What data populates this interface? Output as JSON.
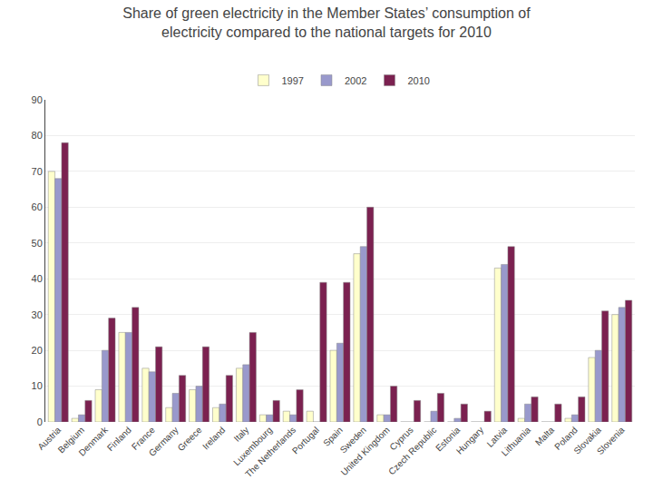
{
  "chart_data": {
    "type": "bar",
    "title": "Share of green electricity in the Member States’ consumption of\nelectricity compared to the national targets for 2010",
    "categories": [
      "Austria",
      "Belgium",
      "Denmark",
      "Finland",
      "France",
      "Germany",
      "Greece",
      "Ireland",
      "Italy",
      "Luxembourg",
      "The Netherlands",
      "Portugal",
      "Spain",
      "Sweden",
      "United Kingdom",
      "Cyprus",
      "Czech Republic",
      "Estonia",
      "Hungary",
      "Latvia",
      "Lithuania",
      "Malta",
      "Poland",
      "Slovakia",
      "Slovenia"
    ],
    "series": [
      {
        "name": "1997",
        "color": "#FFFFCC",
        "values": [
          70,
          1,
          9,
          25,
          15,
          4,
          9,
          4,
          15,
          2,
          3,
          3,
          20,
          47,
          2,
          0,
          0,
          0,
          0,
          43,
          1,
          0,
          1,
          18,
          30
        ]
      },
      {
        "name": "2002",
        "color": "#9999CC",
        "values": [
          68,
          2,
          20,
          25,
          14,
          8,
          10,
          5,
          16,
          2,
          2,
          0,
          22,
          49,
          2,
          0,
          3,
          1,
          0,
          44,
          5,
          0,
          2,
          20,
          32
        ]
      },
      {
        "name": "2010",
        "color": "#7B2150",
        "values": [
          78,
          6,
          29,
          32,
          21,
          13,
          21,
          13,
          25,
          6,
          9,
          39,
          39,
          60,
          10,
          6,
          8,
          5,
          3,
          49,
          7,
          5,
          7,
          31,
          34
        ]
      }
    ],
    "ylim": [
      0,
      90
    ],
    "yticks": [
      0,
      10,
      20,
      30,
      40,
      50,
      60,
      70,
      80,
      90
    ],
    "grid": true,
    "legend": "top"
  }
}
